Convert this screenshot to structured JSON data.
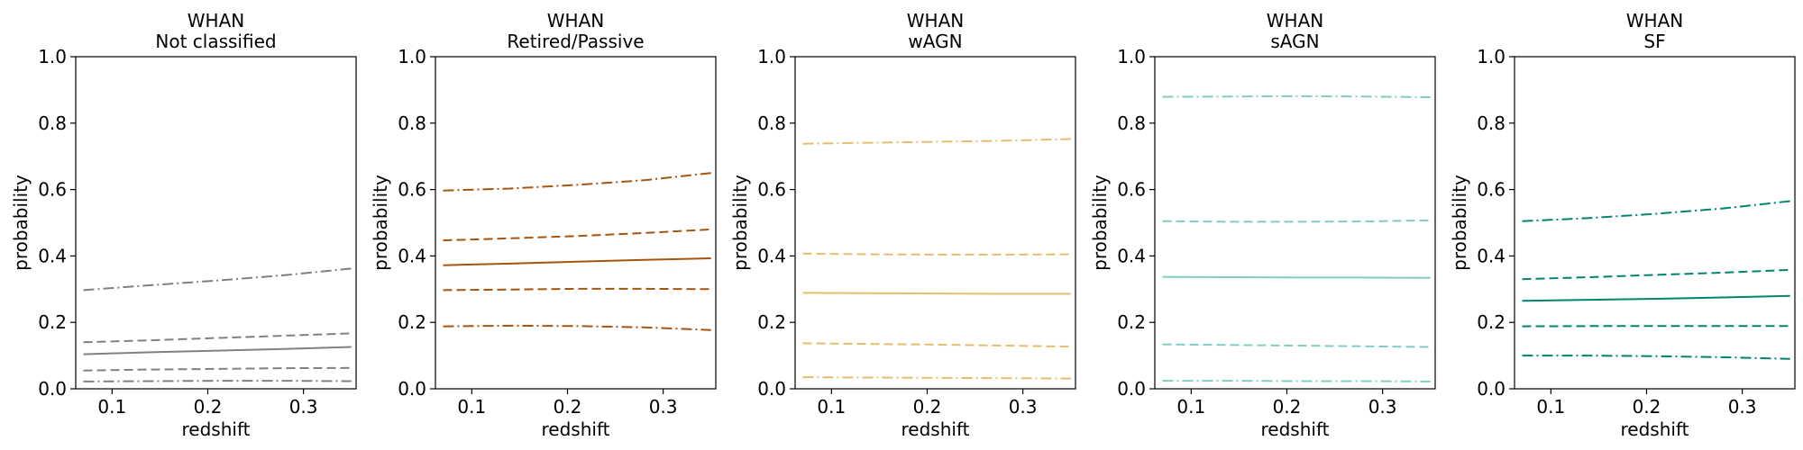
{
  "chart_data": [
    {
      "type": "line",
      "title": [
        "WHAN",
        "Not classified"
      ],
      "xlabel": "redshift",
      "ylabel": "probability",
      "xlim": [
        0.062,
        0.355
      ],
      "ylim": [
        0.0,
        1.0
      ],
      "xticks": [
        "0.1",
        "0.2",
        "0.3"
      ],
      "yticks": [
        "0.0",
        "0.2",
        "0.4",
        "0.6",
        "0.8",
        "1.0"
      ],
      "grid": false,
      "color": "#808080",
      "x": [
        0.07,
        0.14,
        0.21,
        0.28,
        0.35
      ],
      "series": [
        {
          "style": "dashdot",
          "values": [
            0.022,
            0.023,
            0.024,
            0.024,
            0.023
          ]
        },
        {
          "style": "dashed",
          "values": [
            0.055,
            0.058,
            0.06,
            0.062,
            0.063
          ]
        },
        {
          "style": "solid",
          "values": [
            0.104,
            0.11,
            0.115,
            0.12,
            0.126
          ]
        },
        {
          "style": "dashed",
          "values": [
            0.14,
            0.146,
            0.153,
            0.16,
            0.167
          ]
        },
        {
          "style": "dashdot",
          "values": [
            0.297,
            0.312,
            0.326,
            0.342,
            0.362
          ]
        }
      ]
    },
    {
      "type": "line",
      "title": [
        "WHAN",
        "Retired/Passive"
      ],
      "xlabel": "redshift",
      "ylabel": "probability",
      "xlim": [
        0.062,
        0.355
      ],
      "ylim": [
        0.0,
        1.0
      ],
      "xticks": [
        "0.1",
        "0.2",
        "0.3"
      ],
      "yticks": [
        "0.0",
        "0.2",
        "0.4",
        "0.6",
        "0.8",
        "1.0"
      ],
      "grid": false,
      "color": "#a6550e",
      "x": [
        0.07,
        0.14,
        0.21,
        0.28,
        0.35
      ],
      "series": [
        {
          "style": "dashdot",
          "values": [
            0.188,
            0.19,
            0.189,
            0.185,
            0.177
          ]
        },
        {
          "style": "dashed",
          "values": [
            0.297,
            0.299,
            0.301,
            0.301,
            0.3
          ]
        },
        {
          "style": "solid",
          "values": [
            0.372,
            0.377,
            0.383,
            0.388,
            0.393
          ]
        },
        {
          "style": "dashed",
          "values": [
            0.447,
            0.453,
            0.46,
            0.469,
            0.48
          ]
        },
        {
          "style": "dashdot",
          "values": [
            0.597,
            0.603,
            0.614,
            0.628,
            0.65
          ]
        }
      ]
    },
    {
      "type": "line",
      "title": [
        "WHAN",
        "wAGN"
      ],
      "xlabel": "redshift",
      "ylabel": "probability",
      "xlim": [
        0.062,
        0.355
      ],
      "ylim": [
        0.0,
        1.0
      ],
      "xticks": [
        "0.1",
        "0.2",
        "0.3"
      ],
      "yticks": [
        "0.0",
        "0.2",
        "0.4",
        "0.6",
        "0.8",
        "1.0"
      ],
      "grid": false,
      "color": "#e5bd6c",
      "x": [
        0.07,
        0.14,
        0.21,
        0.28,
        0.35
      ],
      "series": [
        {
          "style": "dashdot",
          "values": [
            0.035,
            0.034,
            0.033,
            0.032,
            0.031
          ]
        },
        {
          "style": "dashed",
          "values": [
            0.137,
            0.135,
            0.133,
            0.13,
            0.127
          ]
        },
        {
          "style": "solid",
          "values": [
            0.289,
            0.288,
            0.287,
            0.286,
            0.286
          ]
        },
        {
          "style": "dashed",
          "values": [
            0.407,
            0.405,
            0.404,
            0.404,
            0.405
          ]
        },
        {
          "style": "dashdot",
          "values": [
            0.738,
            0.741,
            0.744,
            0.747,
            0.752
          ]
        }
      ]
    },
    {
      "type": "line",
      "title": [
        "WHAN",
        "sAGN"
      ],
      "xlabel": "redshift",
      "ylabel": "probability",
      "xlim": [
        0.062,
        0.355
      ],
      "ylim": [
        0.0,
        1.0
      ],
      "xticks": [
        "0.1",
        "0.2",
        "0.3"
      ],
      "yticks": [
        "0.0",
        "0.2",
        "0.4",
        "0.6",
        "0.8",
        "1.0"
      ],
      "grid": false,
      "color": "#80cdc1",
      "x": [
        0.07,
        0.14,
        0.21,
        0.28,
        0.35
      ],
      "series": [
        {
          "style": "dashdot",
          "values": [
            0.024,
            0.024,
            0.023,
            0.023,
            0.022
          ]
        },
        {
          "style": "dashed",
          "values": [
            0.134,
            0.132,
            0.13,
            0.128,
            0.126
          ]
        },
        {
          "style": "solid",
          "values": [
            0.337,
            0.336,
            0.335,
            0.335,
            0.334
          ]
        },
        {
          "style": "dashed",
          "values": [
            0.505,
            0.503,
            0.503,
            0.504,
            0.507
          ]
        },
        {
          "style": "dashdot",
          "values": [
            0.879,
            0.88,
            0.881,
            0.88,
            0.878
          ]
        }
      ]
    },
    {
      "type": "line",
      "title": [
        "WHAN",
        "SF"
      ],
      "xlabel": "redshift",
      "ylabel": "probability",
      "xlim": [
        0.062,
        0.355
      ],
      "ylim": [
        0.0,
        1.0
      ],
      "xticks": [
        "0.1",
        "0.2",
        "0.3"
      ],
      "yticks": [
        "0.0",
        "0.2",
        "0.4",
        "0.6",
        "0.8",
        "1.0"
      ],
      "grid": false,
      "color": "#018571",
      "x": [
        0.07,
        0.14,
        0.21,
        0.28,
        0.35
      ],
      "series": [
        {
          "style": "dashdot",
          "values": [
            0.1,
            0.1,
            0.098,
            0.095,
            0.09
          ]
        },
        {
          "style": "dashed",
          "values": [
            0.188,
            0.189,
            0.189,
            0.189,
            0.189
          ]
        },
        {
          "style": "solid",
          "values": [
            0.265,
            0.268,
            0.271,
            0.275,
            0.28
          ]
        },
        {
          "style": "dashed",
          "values": [
            0.33,
            0.336,
            0.343,
            0.35,
            0.358
          ]
        },
        {
          "style": "dashdot",
          "values": [
            0.505,
            0.514,
            0.527,
            0.543,
            0.565
          ]
        }
      ]
    }
  ]
}
